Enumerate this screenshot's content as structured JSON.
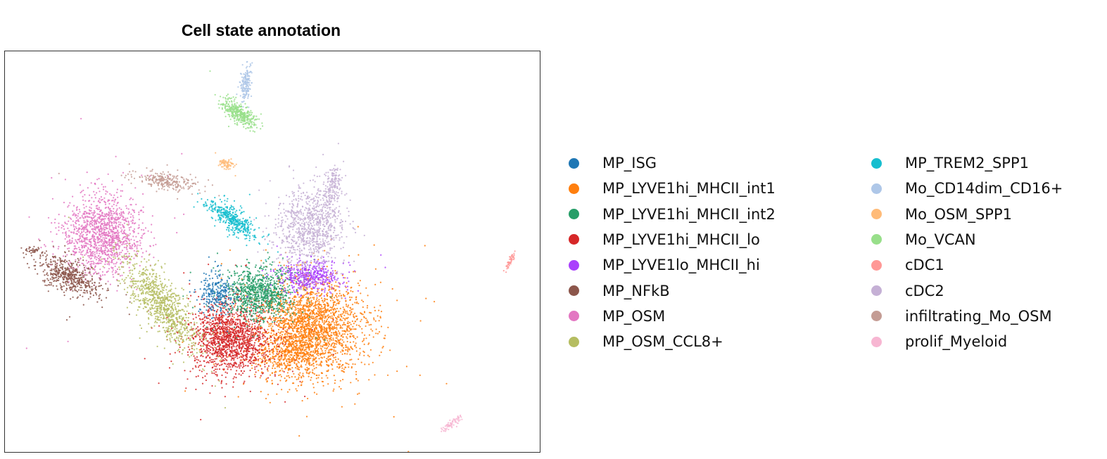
{
  "chart_data": {
    "type": "scatter",
    "title": "Cell state annotation",
    "xlabel": "",
    "ylabel": "",
    "axes_visible": false,
    "grid": false,
    "legend_position": "right",
    "legend_columns": 2,
    "series": [
      {
        "name": "MP_ISG",
        "color": "#1f77b4"
      },
      {
        "name": "MP_LYVE1hi_MHCII_int1",
        "color": "#ff7f0e"
      },
      {
        "name": "MP_LYVE1hi_MHCII_int2",
        "color": "#279e68"
      },
      {
        "name": "MP_LYVE1hi_MHCII_lo",
        "color": "#d62728"
      },
      {
        "name": "MP_LYVE1lo_MHCII_hi",
        "color": "#aa40fc"
      },
      {
        "name": "MP_NFkB",
        "color": "#8c564b"
      },
      {
        "name": "MP_OSM",
        "color": "#e377c2"
      },
      {
        "name": "MP_OSM_CCL8+",
        "color": "#b5bd61"
      },
      {
        "name": "MP_TREM2_SPP1",
        "color": "#17becf"
      },
      {
        "name": "Mo_CD14dim_CD16+",
        "color": "#aec7e8"
      },
      {
        "name": "Mo_OSM_SPP1",
        "color": "#ffbb78"
      },
      {
        "name": "Mo_VCAN",
        "color": "#98df8a"
      },
      {
        "name": "cDC1",
        "color": "#ff9896"
      },
      {
        "name": "cDC2",
        "color": "#c5b0d5"
      },
      {
        "name": "infiltrating_Mo_OSM",
        "color": "#c49c94"
      },
      {
        "name": "prolif_Myeloid",
        "color": "#f7b6d2"
      }
    ]
  }
}
